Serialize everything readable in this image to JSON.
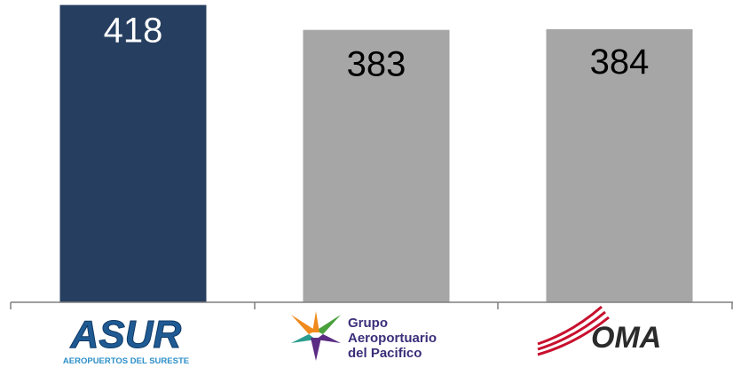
{
  "chart_data": {
    "type": "bar",
    "categories": [
      "ASUR",
      "Grupo Aeroportuario del Pacifico",
      "OMA"
    ],
    "values": [
      418,
      383,
      384
    ],
    "data_labels": [
      "418",
      "383",
      "384"
    ],
    "ylim": [
      0,
      425
    ],
    "grid": false,
    "legend": "none",
    "bar_colors": [
      "#263e5f",
      "#a6a6a6",
      "#a6a6a6"
    ],
    "label_colors": [
      "#ffffff",
      "#000000",
      "#000000"
    ]
  },
  "logos": {
    "asur": {
      "wordmark": "ASUR",
      "tagline": "AEROPUERTOS DEL SURESTE",
      "colors": {
        "primary": "#1f5a93",
        "accent": "#2c8fc8"
      }
    },
    "gap": {
      "line1": "Grupo",
      "line2": "Aeroportuario",
      "line3": "del Pacifico",
      "text_color": "#3a2f7a",
      "colors": {
        "orange": "#f08a1c",
        "green": "#4aa03c",
        "purple": "#5b2c83",
        "teal": "#2a9d8f"
      }
    },
    "oma": {
      "wordmark": "OMA",
      "text_color": "#2b2b2b",
      "swoosh_color": "#c8102e"
    }
  }
}
